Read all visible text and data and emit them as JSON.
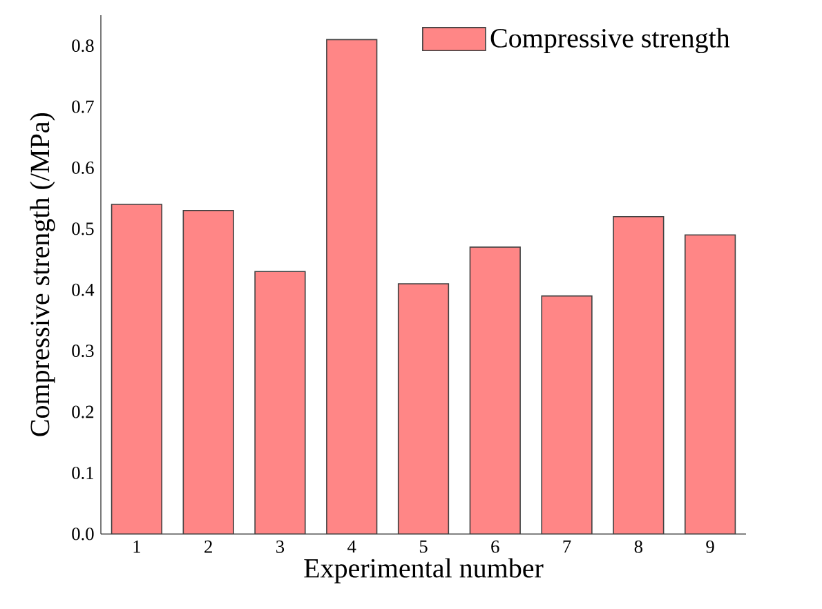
{
  "chart_data": {
    "type": "bar",
    "xlabel": "Experimental number",
    "ylabel": "Compressive strength (/MPa)",
    "categories": [
      "1",
      "2",
      "3",
      "4",
      "5",
      "6",
      "7",
      "8",
      "9"
    ],
    "series": [
      {
        "name": "Compressive strength",
        "color": "#ff8686",
        "values": [
          0.54,
          0.53,
          0.43,
          0.81,
          0.41,
          0.47,
          0.39,
          0.52,
          0.49
        ]
      }
    ],
    "ylim": [
      0,
      0.85
    ],
    "yticks": [
      {
        "value": 0,
        "label": "0.0"
      },
      0.1,
      0.2,
      0.3,
      0.4,
      0.5,
      0.6,
      0.7,
      0.8
    ],
    "grid": false,
    "legend": "top right"
  }
}
